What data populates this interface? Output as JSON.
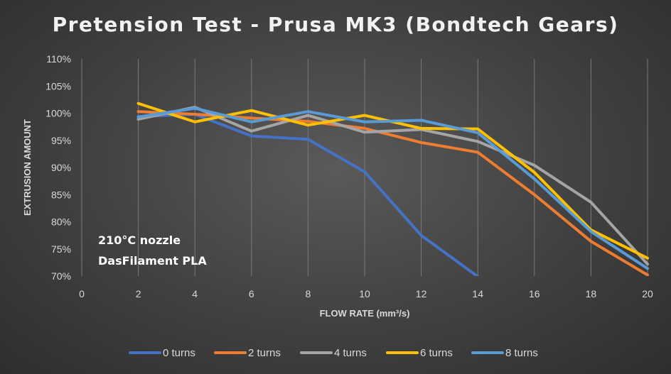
{
  "chart_data": {
    "type": "line",
    "title": "Pretension Test - Prusa MK3 (Bondtech Gears)",
    "xlabel": "FLOW RATE (mm³/s)",
    "ylabel": "EXTRUSION AMOUNT",
    "xlim": [
      0,
      20
    ],
    "ylim": [
      70,
      110
    ],
    "x_ticks": [
      "0",
      "2",
      "4",
      "6",
      "8",
      "10",
      "12",
      "14",
      "16",
      "18",
      "20"
    ],
    "y_ticks": [
      "70%",
      "75%",
      "80%",
      "85%",
      "90%",
      "95%",
      "100%",
      "105%",
      "110%"
    ],
    "grid": "vertical",
    "legend_position": "bottom",
    "x": [
      2,
      4,
      6,
      8,
      10,
      12,
      14,
      16,
      18,
      20
    ],
    "series": [
      {
        "name": "0 turns",
        "color": "#4472c4",
        "values": [
          99.4,
          99.8,
          95.8,
          95.2,
          89.2,
          77.5,
          69.9,
          null,
          null,
          null
        ]
      },
      {
        "name": "2 turns",
        "color": "#ed7d31",
        "values": [
          100.3,
          99.8,
          99.1,
          98.5,
          97.2,
          94.6,
          92.8,
          85.0,
          76.4,
          70.2
        ]
      },
      {
        "name": "4 turns",
        "color": "#a5a5a5",
        "values": [
          98.9,
          101.1,
          96.7,
          99.6,
          96.5,
          97.0,
          94.8,
          90.4,
          83.6,
          72.2
        ]
      },
      {
        "name": "6 turns",
        "color": "#ffc000",
        "values": [
          101.8,
          98.4,
          100.5,
          97.8,
          99.6,
          97.2,
          97.1,
          89.1,
          78.5,
          73.3
        ]
      },
      {
        "name": "8 turns",
        "color": "#5b9bd5",
        "values": [
          99.3,
          100.9,
          98.4,
          100.3,
          98.4,
          98.7,
          96.4,
          87.9,
          78.2,
          71.4
        ]
      }
    ],
    "annotations": [
      "210°C nozzle",
      "DasFilament PLA"
    ]
  }
}
